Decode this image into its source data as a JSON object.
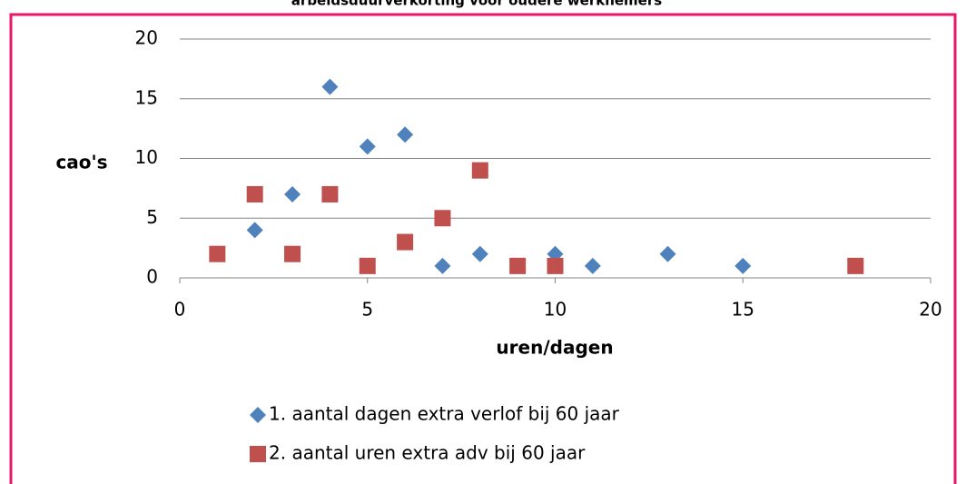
{
  "chart_data": {
    "type": "scatter",
    "title": "arbeidsduurverkorting voor oudere werknemers",
    "x_label": "uren/dagen",
    "y_label": "cao's",
    "xlim": [
      0,
      20
    ],
    "xticks": [
      0,
      5,
      10,
      15,
      20
    ],
    "ylim": [
      0,
      20
    ],
    "yticks": [
      0,
      5,
      10,
      15,
      20
    ],
    "grid": true,
    "legend": "bottom",
    "series": [
      {
        "name": "1. aantal dagen extra verlof bij 60 jaar",
        "color": "#4f81bd",
        "marker": "diamond",
        "x": [
          2,
          3,
          4,
          5,
          6,
          7,
          8,
          10,
          11,
          13,
          15
        ],
        "values": [
          4,
          7,
          16,
          11,
          12,
          1,
          2,
          2,
          1,
          2,
          1
        ]
      },
      {
        "name": "2. aantal uren extra adv bij 60 jaar",
        "color": "#c0504d",
        "marker": "square",
        "x": [
          1,
          2,
          3,
          4,
          5,
          6,
          7,
          8,
          9,
          10,
          18
        ],
        "values": [
          2,
          7,
          2,
          7,
          1,
          3,
          5,
          9,
          1,
          1,
          1
        ]
      }
    ]
  }
}
